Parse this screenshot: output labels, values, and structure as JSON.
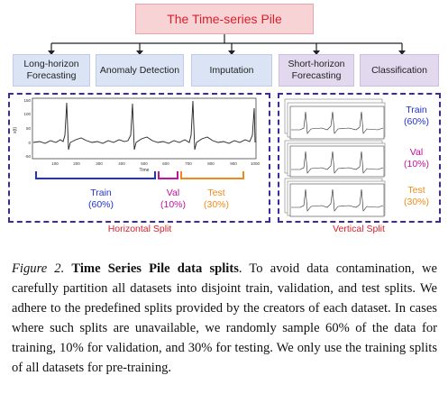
{
  "diagram": {
    "title": "The Time-series Pile",
    "tasks_left": [
      {
        "label_line1": "Long-horizon",
        "label_line2": "Forecasting"
      },
      {
        "label_line1": "Anomaly Detection",
        "label_line2": ""
      },
      {
        "label_line1": "Imputation",
        "label_line2": ""
      }
    ],
    "tasks_right": [
      {
        "label_line1": "Short-horizon",
        "label_line2": "Forecasting"
      },
      {
        "label_line1": "Classification",
        "label_line2": ""
      }
    ],
    "horizontal": {
      "title": "Horizontal Split",
      "plot": {
        "x_label": "Time",
        "y_label": "x(t)",
        "x_ticks": [
          "100",
          "200",
          "300",
          "400",
          "500",
          "600",
          "700",
          "800",
          "900",
          "1000"
        ],
        "y_ticks": [
          "150",
          "100",
          "50",
          "0",
          "-50"
        ]
      },
      "train": {
        "name": "Train",
        "pct": "(60%)"
      },
      "val": {
        "name": "Val",
        "pct": "(10%)"
      },
      "test": {
        "name": "Test",
        "pct": "(30%)"
      },
      "colors": {
        "train": "#2233cc",
        "val": "#c0129a",
        "test": "#ef8a1a"
      }
    },
    "vertical": {
      "title": "Vertical Split",
      "train": {
        "name": "Train",
        "pct": "(60%)"
      },
      "val": {
        "name": "Val",
        "pct": "(10%)"
      },
      "test": {
        "name": "Test",
        "pct": "(30%)"
      }
    }
  },
  "caption": {
    "fig_label": "Figure 2.",
    "bold_title": "Time Series Pile data splits",
    "text": ". To avoid data contamination, we carefully partition all datasets into disjoint train, validation, and test splits. We adhere to the predefined splits provided by the creators of each dataset. In cases where such splits are unavailable, we randomly sample 60% of the data for training, 10% for validation, and 30% for testing. We only use the training splits of all datasets for pre-training."
  }
}
